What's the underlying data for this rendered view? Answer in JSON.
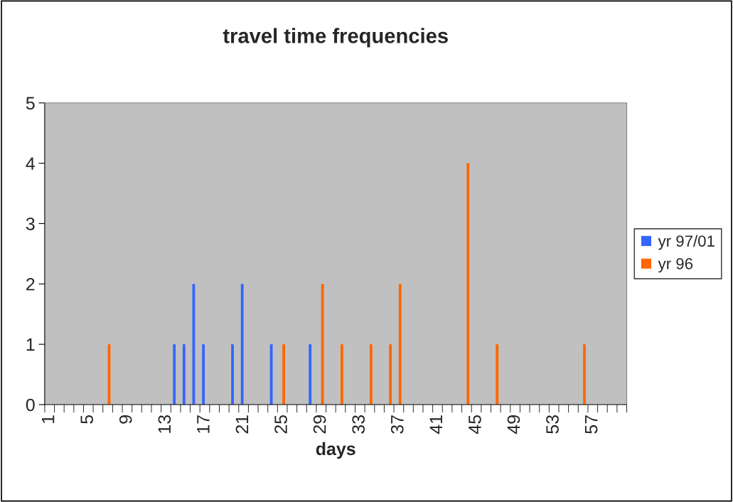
{
  "chart_data": {
    "type": "bar",
    "title": "travel time frequencies",
    "xlabel": "days",
    "categories": [
      "1",
      null,
      null,
      null,
      "5",
      null,
      null,
      null,
      "9",
      null,
      null,
      null,
      "13",
      null,
      null,
      null,
      "17",
      null,
      null,
      null,
      "21",
      null,
      null,
      null,
      "25",
      null,
      null,
      null,
      "29",
      null,
      null,
      null,
      "33",
      null,
      null,
      null,
      "37",
      null,
      null,
      null,
      "41",
      null,
      null,
      null,
      "45",
      null,
      null,
      null,
      "49",
      null,
      null,
      null,
      "53",
      null,
      null,
      null,
      "57",
      null,
      null,
      null
    ],
    "series": [
      {
        "name": "yr 97/01",
        "color": "#3366ff",
        "values": [
          0,
          0,
          0,
          0,
          0,
          0,
          0,
          0,
          0,
          0,
          0,
          0,
          0,
          1,
          1,
          2,
          1,
          0,
          0,
          1,
          2,
          0,
          0,
          1,
          0,
          0,
          0,
          1,
          0,
          0,
          0,
          0,
          0,
          0,
          0,
          0,
          0,
          0,
          0,
          0,
          0,
          0,
          0,
          0,
          0,
          0,
          0,
          0,
          0,
          0,
          0,
          0,
          0,
          0,
          0,
          0,
          0,
          0,
          0,
          0
        ]
      },
      {
        "name": "yr 96",
        "color": "#ff6600",
        "values": [
          0,
          0,
          0,
          0,
          0,
          0,
          1,
          0,
          0,
          0,
          0,
          0,
          0,
          0,
          0,
          0,
          0,
          0,
          0,
          0,
          0,
          0,
          0,
          0,
          1,
          0,
          0,
          0,
          2,
          0,
          1,
          0,
          0,
          1,
          0,
          1,
          2,
          0,
          0,
          0,
          0,
          0,
          0,
          4,
          0,
          0,
          1,
          0,
          0,
          0,
          0,
          0,
          0,
          0,
          0,
          1,
          0,
          0,
          0,
          0
        ]
      }
    ],
    "ylim": [
      0,
      5
    ],
    "yticks": [
      0,
      1,
      2,
      3,
      4,
      5
    ],
    "grid": false,
    "legend": "right"
  }
}
